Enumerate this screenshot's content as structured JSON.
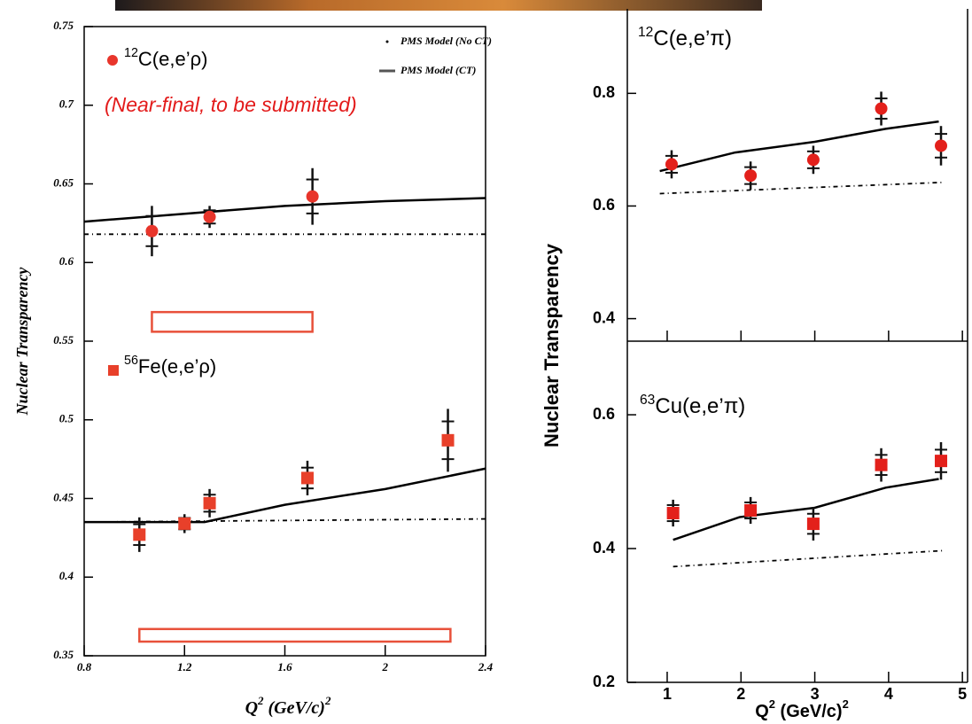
{
  "chart_data": [
    {
      "type": "scatter",
      "xlim": [
        0.8,
        2.4
      ],
      "ylim": [
        0.35,
        0.75
      ],
      "xticks": [
        0.8,
        1.2,
        1.6,
        2,
        2.4
      ],
      "yticks": [
        0.35,
        0.4,
        0.45,
        0.5,
        0.55,
        0.6,
        0.65,
        0.7,
        0.75
      ],
      "y_label": "Nuclear Transparency",
      "x_label": {
        "base": "Q",
        "sup": "2",
        "unit": " (GeV/c)",
        "unit_sup": "2"
      },
      "annotation": "(Near-final, to be submitted)",
      "legend": [
        {
          "name": "PMS Model (No CT)",
          "style": "dotted"
        },
        {
          "name": "PMS Model (CT)",
          "style": "solid"
        }
      ],
      "series": [
        {
          "isotope": "12",
          "name": "C(e,e’ρ)",
          "color": "#e8352b",
          "marker": "circle",
          "x": [
            1.07,
            1.3,
            1.71
          ],
          "values": [
            0.62,
            0.629,
            0.642
          ],
          "errors": [
            0.016,
            0.007,
            0.018
          ]
        },
        {
          "isotope": "56",
          "name": "Fe(e,e’ρ)",
          "color": "#e8402a",
          "marker": "square",
          "x": [
            1.02,
            1.2,
            1.3,
            1.69,
            2.25
          ],
          "values": [
            0.427,
            0.434,
            0.447,
            0.463,
            0.487
          ],
          "errors": [
            0.011,
            0.006,
            0.009,
            0.011,
            0.02
          ]
        }
      ],
      "models": [
        {
          "style": "dotted",
          "color": "#000000",
          "x": [
            0.8,
            2.4
          ],
          "values": [
            0.618,
            0.618
          ]
        },
        {
          "style": "solid",
          "color": "#000000",
          "x": [
            0.8,
            1.2,
            1.6,
            2.0,
            2.4
          ],
          "values": [
            0.626,
            0.631,
            0.636,
            0.639,
            0.641
          ]
        },
        {
          "style": "dotted",
          "color": "#000000",
          "x": [
            0.8,
            2.4
          ],
          "values": [
            0.435,
            0.437
          ]
        },
        {
          "style": "solid",
          "color": "#000000",
          "x": [
            0.8,
            1.28,
            1.6,
            2.0,
            2.4
          ],
          "values": [
            0.435,
            0.435,
            0.446,
            0.456,
            0.469
          ]
        }
      ],
      "bands": [
        {
          "x": [
            1.07,
            1.71
          ],
          "y": [
            0.556,
            0.5685
          ]
        },
        {
          "x": [
            1.02,
            2.26
          ],
          "y": [
            0.359,
            0.367
          ]
        }
      ]
    },
    {
      "type": "scatter",
      "xlim": [
        0.46,
        5.07
      ],
      "ylim": [
        0.36,
        0.95
      ],
      "xticks": [
        1,
        2,
        3,
        4,
        5
      ],
      "show_xtick_labels": false,
      "yticks": [
        0.4,
        0.6,
        0.8
      ],
      "y_label": "Nuclear Transparency",
      "series": [
        {
          "isotope": "12",
          "name": "C(e,e’π)",
          "color": "#e3201b",
          "marker": "circle",
          "x": [
            1.06,
            2.13,
            2.98,
            3.9,
            4.71
          ],
          "values": [
            0.674,
            0.654,
            0.682,
            0.773,
            0.707
          ],
          "errors": [
            0.025,
            0.025,
            0.025,
            0.03,
            0.035
          ]
        }
      ],
      "models": [
        {
          "style": "dotted",
          "color": "#000000",
          "x": [
            0.9,
            4.75
          ],
          "values": [
            0.622,
            0.642
          ]
        },
        {
          "style": "solid",
          "color": "#000000",
          "x": [
            0.9,
            1.92,
            3.0,
            3.96,
            4.68
          ],
          "values": [
            0.662,
            0.695,
            0.714,
            0.737,
            0.75
          ]
        }
      ]
    },
    {
      "type": "scatter",
      "xlim": [
        0.46,
        5.07
      ],
      "ylim": [
        0.2,
        0.71
      ],
      "xticks": [
        1,
        2,
        3,
        4,
        5
      ],
      "show_xtick_labels": true,
      "yticks": [
        0.2,
        0.4,
        0.6
      ],
      "x_label": {
        "base": "Q",
        "sup": "2",
        "unit": " (GeV/c)",
        "unit_sup": "2"
      },
      "series": [
        {
          "isotope": "63",
          "name": "Cu(e,e’π)",
          "color": "#e3201b",
          "marker": "square",
          "x": [
            1.08,
            2.13,
            2.98,
            3.9,
            4.71
          ],
          "values": [
            0.453,
            0.457,
            0.437,
            0.525,
            0.531
          ],
          "errors": [
            0.02,
            0.02,
            0.025,
            0.025,
            0.028
          ]
        }
      ],
      "models": [
        {
          "style": "dotted",
          "color": "#000000",
          "x": [
            1.08,
            4.75
          ],
          "values": [
            0.373,
            0.397
          ]
        },
        {
          "style": "solid",
          "color": "#000000",
          "x": [
            1.08,
            1.98,
            3.0,
            3.96,
            4.68
          ],
          "values": [
            0.413,
            0.447,
            0.461,
            0.491,
            0.504
          ]
        }
      ]
    }
  ]
}
